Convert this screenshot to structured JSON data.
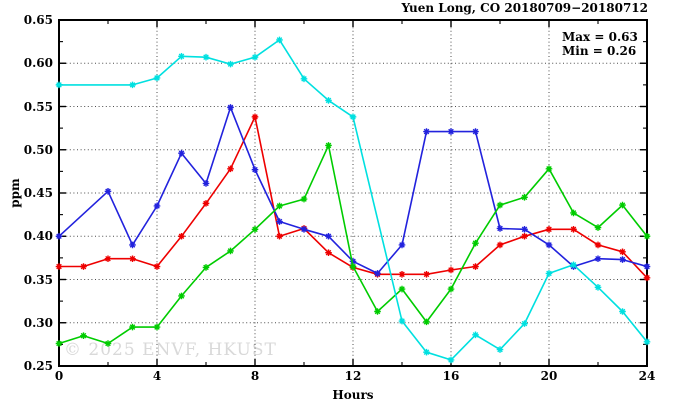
{
  "title": "Yuen Long, CO 20180709−20180712",
  "annotations": {
    "max_label": "Max = 0.63",
    "min_label": "Min = 0.26"
  },
  "watermark": "© 2025 ENVF, HKUST",
  "chart_data": {
    "type": "line",
    "title": "Yuen Long, CO 20180709−20180712",
    "xlabel": "Hours",
    "ylabel": "ppm",
    "xlim": [
      0,
      24
    ],
    "ylim": [
      0.25,
      0.65
    ],
    "xticks_major": [
      0,
      4,
      8,
      12,
      16,
      20,
      24
    ],
    "xticks_minor": [
      2,
      6,
      10,
      14,
      18,
      22
    ],
    "yticks_major": [
      0.25,
      0.3,
      0.35,
      0.4,
      0.45,
      0.5,
      0.55,
      0.6,
      0.65
    ],
    "yticks_minor": [
      0.275,
      0.325,
      0.375,
      0.425,
      0.475,
      0.525,
      0.575,
      0.625
    ],
    "grid_x": [
      4,
      8,
      12,
      16,
      20
    ],
    "grid_y": [
      0.3,
      0.35,
      0.4,
      0.45,
      0.5,
      0.55,
      0.6
    ],
    "grid": true,
    "legend_position": "none",
    "stat_max": 0.63,
    "stat_min": 0.26,
    "marker": "asterisk",
    "series": [
      {
        "name": "series-red",
        "color": "#ee0000",
        "points": [
          [
            0,
            0.365
          ],
          [
            1,
            0.365
          ],
          [
            2,
            0.374
          ],
          [
            3,
            0.374
          ],
          [
            4,
            0.365
          ],
          [
            5,
            0.4
          ],
          [
            6,
            0.438
          ],
          [
            7,
            0.478
          ],
          [
            8,
            0.538
          ],
          [
            9,
            0.4
          ],
          [
            10,
            0.409
          ],
          [
            11,
            0.381
          ],
          [
            12,
            0.364
          ],
          [
            13,
            0.356
          ],
          [
            14,
            0.356
          ],
          [
            15,
            0.356
          ],
          [
            16,
            0.361
          ],
          [
            17,
            0.365
          ],
          [
            18,
            0.39
          ],
          [
            19,
            0.4
          ],
          [
            20,
            0.408
          ],
          [
            21,
            0.408
          ],
          [
            22,
            0.39
          ],
          [
            23,
            0.382
          ],
          [
            24,
            0.352
          ]
        ]
      },
      {
        "name": "series-blue",
        "color": "#2222dd",
        "points": [
          [
            0,
            0.4
          ],
          [
            2,
            0.452
          ],
          [
            3,
            0.39
          ],
          [
            4,
            0.435
          ],
          [
            5,
            0.496
          ],
          [
            6,
            0.461
          ],
          [
            7,
            0.549
          ],
          [
            8,
            0.477
          ],
          [
            9,
            0.417
          ],
          [
            10,
            0.408
          ],
          [
            11,
            0.4
          ],
          [
            12,
            0.371
          ],
          [
            13,
            0.357
          ],
          [
            14,
            0.39
          ],
          [
            15,
            0.521
          ],
          [
            16,
            0.521
          ],
          [
            17,
            0.521
          ],
          [
            18,
            0.409
          ],
          [
            19,
            0.408
          ],
          [
            20,
            0.39
          ],
          [
            21,
            0.365
          ],
          [
            22,
            0.374
          ],
          [
            23,
            0.373
          ],
          [
            24,
            0.365
          ]
        ]
      },
      {
        "name": "series-green",
        "color": "#00cc00",
        "points": [
          [
            0,
            0.276
          ],
          [
            1,
            0.285
          ],
          [
            2,
            0.276
          ],
          [
            3,
            0.295
          ],
          [
            4,
            0.295
          ],
          [
            5,
            0.331
          ],
          [
            6,
            0.364
          ],
          [
            7,
            0.383
          ],
          [
            8,
            0.408
          ],
          [
            9,
            0.435
          ],
          [
            10,
            0.443
          ],
          [
            11,
            0.505
          ],
          [
            12,
            0.365
          ],
          [
            13,
            0.313
          ],
          [
            14,
            0.339
          ],
          [
            15,
            0.301
          ],
          [
            16,
            0.339
          ],
          [
            17,
            0.392
          ],
          [
            18,
            0.436
          ],
          [
            19,
            0.445
          ],
          [
            20,
            0.478
          ],
          [
            21,
            0.427
          ],
          [
            22,
            0.41
          ],
          [
            23,
            0.436
          ],
          [
            24,
            0.4
          ]
        ]
      },
      {
        "name": "series-cyan",
        "color": "#00e0e0",
        "points": [
          [
            0,
            0.575
          ],
          [
            3,
            0.575
          ],
          [
            4,
            0.583
          ],
          [
            5,
            0.608
          ],
          [
            6,
            0.607
          ],
          [
            7,
            0.599
          ],
          [
            8,
            0.607
          ],
          [
            9,
            0.627
          ],
          [
            10,
            0.582
          ],
          [
            11,
            0.557
          ],
          [
            12,
            0.538
          ],
          [
            14,
            0.302
          ],
          [
            15,
            0.266
          ],
          [
            16,
            0.257
          ],
          [
            17,
            0.286
          ],
          [
            18,
            0.269
          ],
          [
            19,
            0.299
          ],
          [
            20,
            0.357
          ],
          [
            21,
            0.367
          ],
          [
            22,
            0.341
          ],
          [
            23,
            0.313
          ],
          [
            24,
            0.278
          ]
        ]
      }
    ]
  }
}
